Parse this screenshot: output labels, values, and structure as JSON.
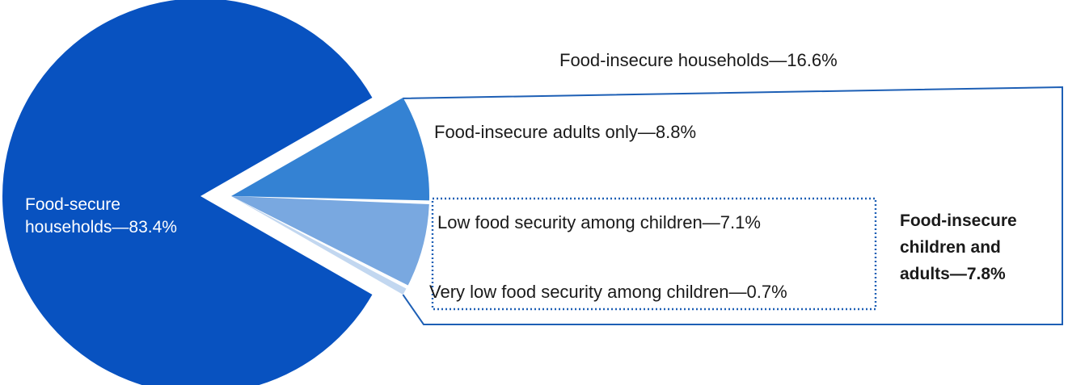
{
  "chart_data": {
    "type": "pie",
    "slices": [
      {
        "label": "Food-secure households—83.4%",
        "value": 83.4,
        "color": "#0852c0"
      },
      {
        "label": "Food-insecure adults only—8.8%",
        "value": 8.8,
        "color": "#3482d3"
      },
      {
        "label": "Low food security among children—7.1%",
        "value": 7.1,
        "color": "#79a8e0"
      },
      {
        "label": "Very low food security among children—0.7%",
        "value": 0.7,
        "color": "#c2d7f0"
      }
    ],
    "groups": [
      {
        "label": "Food-insecure households—16.6%",
        "value": 16.6,
        "members": [
          1,
          2,
          3
        ]
      },
      {
        "label_lines": [
          "Food-insecure",
          "children and",
          "adults—7.8%"
        ],
        "value": 7.8,
        "members": [
          2,
          3
        ]
      }
    ],
    "colors": {
      "outline": "#1d5fb5",
      "dotted": "#1d5fb5"
    }
  }
}
